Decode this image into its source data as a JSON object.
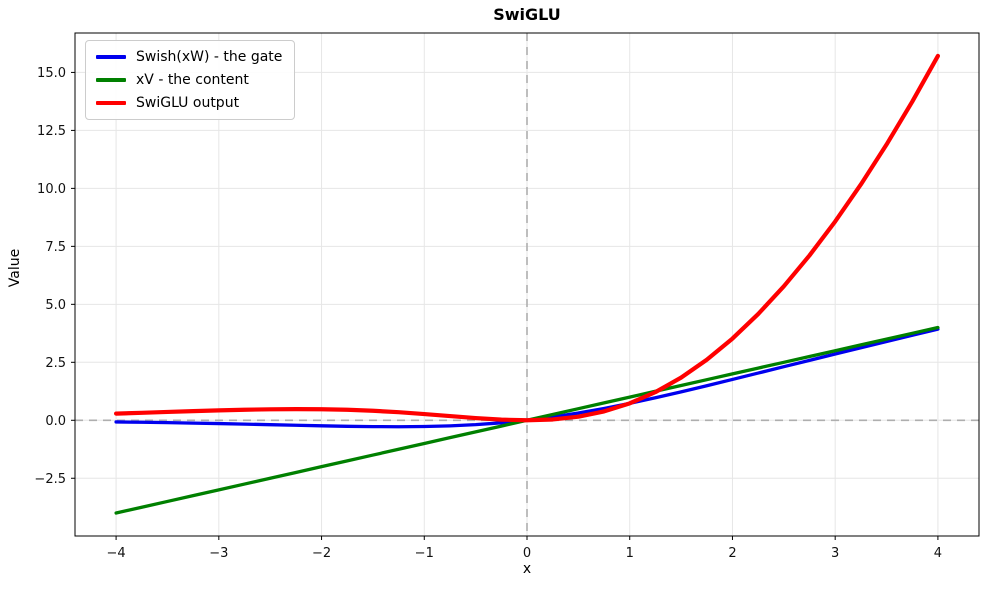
{
  "chart_data": {
    "type": "line",
    "title": "SwiGLU",
    "xlabel": "x",
    "ylabel": "Value",
    "xlim": [
      -4.4,
      4.4
    ],
    "ylim": [
      -4.99,
      16.7
    ],
    "grid": true,
    "grid_color": "#e6e6e6",
    "spine_color": "#000000",
    "background": "#ffffff",
    "reference_lines": {
      "x": 0,
      "y": 0,
      "style": "dashed",
      "color": "#aeaeae"
    },
    "legend_position": "upper left",
    "xticks": {
      "values": [
        -4,
        -3,
        -2,
        -1,
        0,
        1,
        2,
        3,
        4
      ],
      "labels": [
        "−4",
        "−3",
        "−2",
        "−1",
        "0",
        "1",
        "2",
        "3",
        "4"
      ]
    },
    "yticks": {
      "values": [
        -2.5,
        0.0,
        2.5,
        5.0,
        7.5,
        10.0,
        12.5,
        15.0
      ],
      "labels": [
        "−2.5",
        "0.0",
        "2.5",
        "5.0",
        "7.5",
        "10.0",
        "12.5",
        "15.0"
      ]
    },
    "x": [
      -4,
      -3.75,
      -3.5,
      -3.25,
      -3,
      -2.75,
      -2.5,
      -2.25,
      -2,
      -1.75,
      -1.5,
      -1.25,
      -1,
      -0.75,
      -0.5,
      -0.25,
      0,
      0.25,
      0.5,
      0.75,
      1,
      1.25,
      1.5,
      1.75,
      2,
      2.25,
      2.5,
      2.75,
      3,
      3.25,
      3.5,
      3.75,
      4
    ],
    "series": [
      {
        "name": "Swish(xW) - the gate",
        "color": "#0000ee",
        "lw": 3.3,
        "values": [
          -0.0719,
          -0.0862,
          -0.1026,
          -0.1213,
          -0.1423,
          -0.1652,
          -0.1896,
          -0.2145,
          -0.2384,
          -0.2591,
          -0.2736,
          -0.2784,
          -0.2689,
          -0.2406,
          -0.1888,
          -0.1095,
          0,
          0.1405,
          0.3112,
          0.5094,
          0.7311,
          0.9716,
          1.2264,
          1.4909,
          1.7616,
          2.0355,
          2.3104,
          2.5848,
          2.8577,
          3.1287,
          3.3974,
          3.6638,
          3.9281
        ]
      },
      {
        "name": "xV - the content",
        "color": "#008000",
        "lw": 3.3,
        "values": [
          -4,
          -3.75,
          -3.5,
          -3.25,
          -3,
          -2.75,
          -2.5,
          -2.25,
          -2,
          -1.75,
          -1.5,
          -1.25,
          -1,
          -0.75,
          -0.5,
          -0.25,
          0,
          0.25,
          0.5,
          0.75,
          1,
          1.25,
          1.5,
          1.75,
          2,
          2.25,
          2.5,
          2.75,
          3,
          3.25,
          3.5,
          3.75,
          4
        ]
      },
      {
        "name": "SwiGLU output",
        "color": "#ff0000",
        "lw": 4.2,
        "values": [
          0.2878,
          0.3231,
          0.359,
          0.3943,
          0.4268,
          0.4544,
          0.4741,
          0.4827,
          0.4768,
          0.4534,
          0.4105,
          0.348,
          0.2689,
          0.1805,
          0.0944,
          0.0274,
          0,
          0.0351,
          0.1556,
          0.3821,
          0.7311,
          1.2145,
          1.8395,
          2.6091,
          3.5232,
          4.5798,
          5.7759,
          7.1081,
          8.5732,
          10.1682,
          11.8909,
          13.7394,
          15.7122
        ]
      }
    ]
  }
}
